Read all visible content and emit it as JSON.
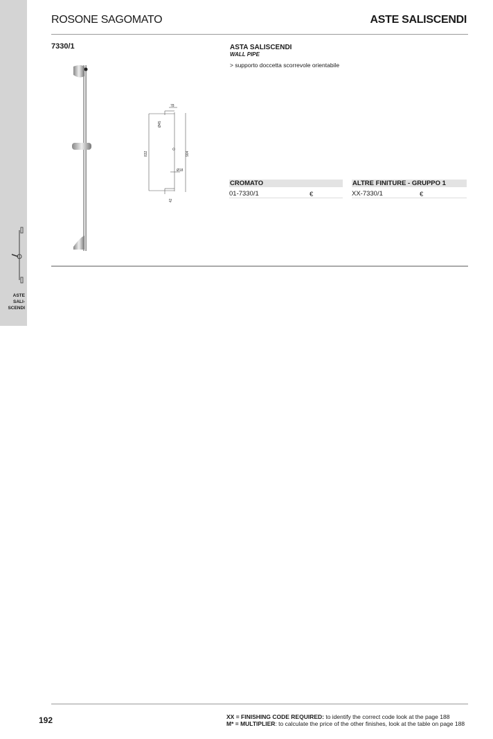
{
  "header": {
    "left_title": "ROSONE SAGOMATO",
    "right_title": "ASTE SALISCENDI"
  },
  "sidebar": {
    "tab_label_lines": [
      "ASTE",
      "SALI-",
      "SCENDI"
    ]
  },
  "product": {
    "code": "7330/1",
    "name": "ASTA SALISCENDI",
    "name_en": "WALL PIPE",
    "feature": "> supporto doccetta scorrevole orientabile",
    "drawing_dimensions": {
      "width": "78",
      "rosette_diameter": "Ø45",
      "center_distance": "832",
      "total_length": "904",
      "pipe_diameter": "Ø18",
      "base": "42"
    }
  },
  "pricing": [
    {
      "header": "CROMATO",
      "code": "01-7330/1",
      "currency": "€"
    },
    {
      "header": "ALTRE FINITURE - GRUPPO 1",
      "code": "XX-7330/1",
      "currency": "€"
    }
  ],
  "footer": {
    "page_number": "192",
    "note1_key": "XX = FINISHING CODE REQUIRED:",
    "note1_text": " to identify the correct code look at the page 188",
    "note2_key": "M* = MULTIPLIER",
    "note2_text": ": to calculate the price of the other finishes, look at the table on page 188"
  }
}
